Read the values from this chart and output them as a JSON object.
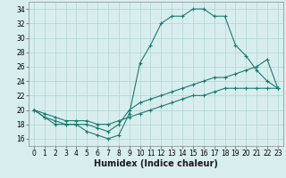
{
  "xlabel": "Humidex (Indice chaleur)",
  "ylabel": "",
  "x_values": [
    0,
    1,
    2,
    3,
    4,
    5,
    6,
    7,
    8,
    9,
    10,
    11,
    12,
    13,
    14,
    15,
    16,
    17,
    18,
    19,
    20,
    21,
    22,
    23
  ],
  "line1": [
    20,
    19,
    18,
    18,
    18,
    17,
    16.5,
    16,
    16.5,
    19.5,
    26.5,
    29,
    32,
    33,
    33,
    34,
    34,
    33,
    33,
    29,
    27.5,
    25.5,
    24,
    23
  ],
  "line2": [
    20,
    19,
    18.5,
    18,
    18,
    18,
    17.5,
    17,
    18,
    20,
    21,
    21.5,
    22,
    22.5,
    23,
    23.5,
    24,
    24.5,
    24.5,
    25,
    25.5,
    26,
    27,
    23
  ],
  "line3": [
    20,
    19.5,
    19,
    18.5,
    18.5,
    18.5,
    18,
    18,
    18.5,
    19,
    19.5,
    20,
    20.5,
    21,
    21.5,
    22,
    22,
    22.5,
    23,
    23,
    23,
    23,
    23,
    23
  ],
  "line_color": "#1a7a6e",
  "bg_color": "#d8eeee",
  "grid_color": "#b0d4d4",
  "ylim": [
    15,
    35
  ],
  "yticks": [
    16,
    18,
    20,
    22,
    24,
    26,
    28,
    30,
    32,
    34
  ],
  "xticks": [
    0,
    1,
    2,
    3,
    4,
    5,
    6,
    7,
    8,
    9,
    10,
    11,
    12,
    13,
    14,
    15,
    16,
    17,
    18,
    19,
    20,
    21,
    22,
    23
  ],
  "marker": "+",
  "markersize": 3.0,
  "linewidth": 0.8,
  "xlabel_fontsize": 7,
  "tick_fontsize": 5.5
}
